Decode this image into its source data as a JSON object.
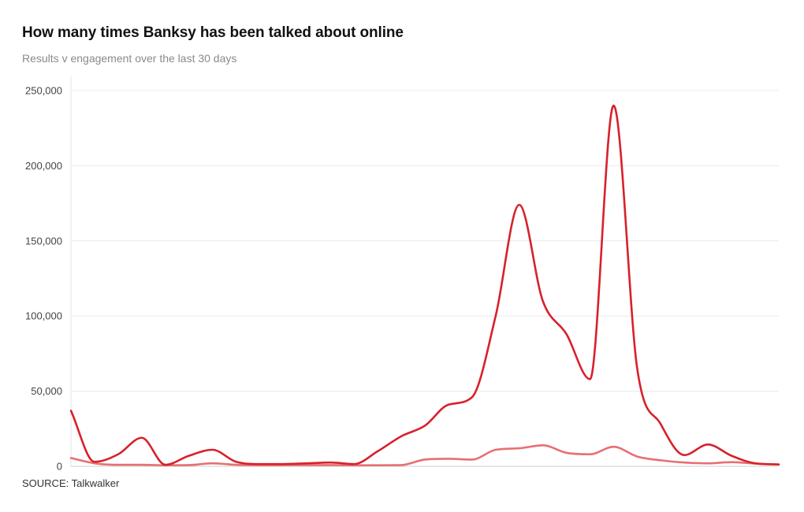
{
  "header": {
    "title": "How many times Banksy has been talked about online",
    "subtitle": "Results v engagement over the last 30 days"
  },
  "footer": {
    "source": "SOURCE: Talkwalker"
  },
  "chart_data": {
    "type": "line",
    "title": "How many times Banksy has been talked about online",
    "subtitle": "Results v engagement over the last 30 days",
    "xlabel": "",
    "ylabel": "",
    "ylim": [
      0,
      250000
    ],
    "yticks": [
      0,
      50000,
      100000,
      150000,
      200000,
      250000
    ],
    "ytick_labels": [
      "0",
      "50,000",
      "100,000",
      "150,000",
      "200,000",
      "250,000"
    ],
    "grid": true,
    "legend": "none",
    "x": [
      1,
      2,
      3,
      4,
      5,
      6,
      7,
      8,
      9,
      10,
      11,
      12,
      13,
      14,
      15,
      16,
      17,
      18,
      19,
      20,
      21,
      22,
      23,
      24,
      25,
      26,
      27,
      28,
      29,
      30,
      31
    ],
    "series": [
      {
        "color": "#d7212b",
        "values": [
          37000,
          3000,
          8000,
          19000,
          1000,
          7000,
          11000,
          3000,
          1500,
          1500,
          2000,
          2500,
          1500,
          10000,
          20000,
          27000,
          41000,
          46000,
          100000,
          174000,
          110000,
          88000,
          58000,
          240000,
          65000,
          28000,
          7500,
          14500,
          7000,
          2000,
          1200
        ]
      },
      {
        "color": "#e76f72",
        "values": [
          5500,
          2000,
          1000,
          1000,
          700,
          800,
          2000,
          1000,
          800,
          800,
          800,
          800,
          700,
          700,
          800,
          4500,
          5000,
          4500,
          11000,
          12000,
          14000,
          9000,
          8000,
          13000,
          6500,
          4000,
          2500,
          2000,
          2800,
          1800,
          1200
        ]
      }
    ]
  }
}
